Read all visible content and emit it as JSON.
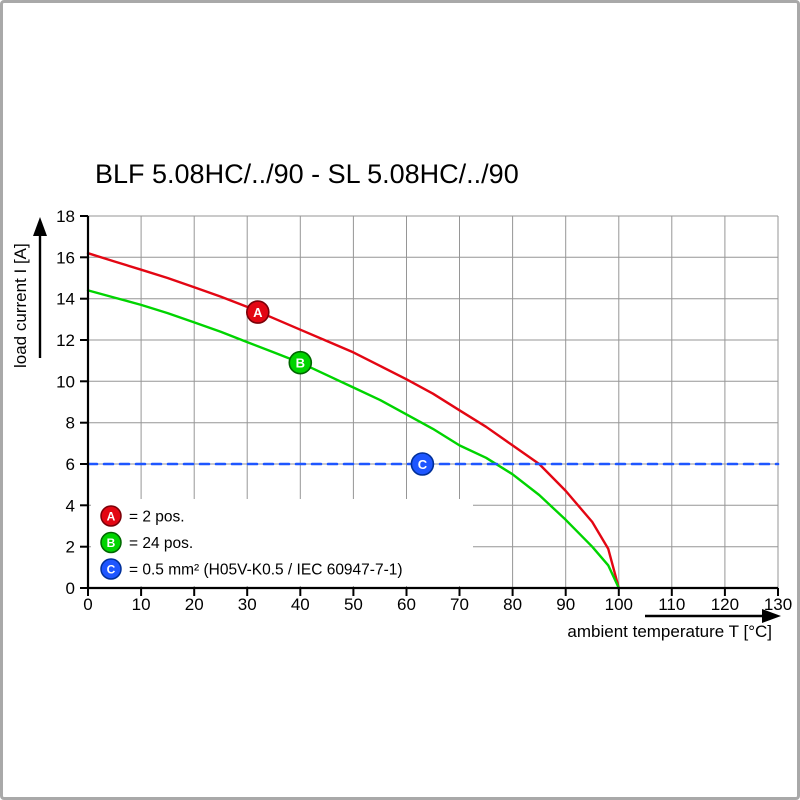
{
  "chart_data": {
    "type": "line",
    "title": "BLF 5.08HC/../90 - SL 5.08HC/../90",
    "xlabel": "ambient temperature T [°C]",
    "ylabel": "load current I [A]",
    "xlim": [
      0,
      130
    ],
    "ylim": [
      0,
      18
    ],
    "x_ticks": [
      0,
      10,
      20,
      30,
      40,
      50,
      60,
      70,
      80,
      90,
      100,
      110,
      120,
      130
    ],
    "y_ticks": [
      0,
      2,
      4,
      6,
      8,
      10,
      12,
      14,
      16,
      18
    ],
    "grid": true,
    "legend_position": "bottom-left-inside",
    "colors": {
      "axis": "#000000",
      "grid": "#969696",
      "background": "#ffffff"
    },
    "series": [
      {
        "id": "A",
        "legend_label": "= 2 pos.",
        "color": "#e30613",
        "stroke_dark": "#7a0008",
        "style": "solid",
        "marker": {
          "x": 32,
          "y": 13.35
        },
        "points": [
          [
            0,
            16.2
          ],
          [
            5,
            15.8
          ],
          [
            10,
            15.4
          ],
          [
            15,
            15.0
          ],
          [
            20,
            14.55
          ],
          [
            25,
            14.1
          ],
          [
            30,
            13.6
          ],
          [
            35,
            13.05
          ],
          [
            40,
            12.5
          ],
          [
            45,
            11.95
          ],
          [
            50,
            11.4
          ],
          [
            55,
            10.75
          ],
          [
            60,
            10.1
          ],
          [
            65,
            9.4
          ],
          [
            70,
            8.6
          ],
          [
            75,
            7.8
          ],
          [
            80,
            6.9
          ],
          [
            85,
            6.0
          ],
          [
            90,
            4.7
          ],
          [
            95,
            3.2
          ],
          [
            98,
            1.9
          ],
          [
            100,
            0
          ]
        ]
      },
      {
        "id": "B",
        "legend_label": "= 24 pos.",
        "color": "#00d400",
        "stroke_dark": "#006600",
        "style": "solid",
        "marker": {
          "x": 40,
          "y": 10.9
        },
        "points": [
          [
            0,
            14.4
          ],
          [
            5,
            14.05
          ],
          [
            10,
            13.7
          ],
          [
            15,
            13.3
          ],
          [
            20,
            12.85
          ],
          [
            25,
            12.4
          ],
          [
            30,
            11.9
          ],
          [
            35,
            11.4
          ],
          [
            40,
            10.9
          ],
          [
            45,
            10.3
          ],
          [
            50,
            9.7
          ],
          [
            55,
            9.1
          ],
          [
            60,
            8.4
          ],
          [
            65,
            7.7
          ],
          [
            70,
            6.9
          ],
          [
            75,
            6.3
          ],
          [
            80,
            5.5
          ],
          [
            85,
            4.5
          ],
          [
            90,
            3.3
          ],
          [
            95,
            2.0
          ],
          [
            98,
            1.1
          ],
          [
            100,
            0
          ]
        ]
      },
      {
        "id": "C",
        "legend_label": "= 0.5 mm² (H05V-K0.5 / IEC 60947-7-1)",
        "color": "#1e56ff",
        "stroke_dark": "#002f99",
        "style": "dashed",
        "hline_y": 6,
        "marker": {
          "x": 63,
          "y": 6
        },
        "points": [
          [
            0,
            6
          ],
          [
            130,
            6
          ]
        ]
      }
    ]
  }
}
